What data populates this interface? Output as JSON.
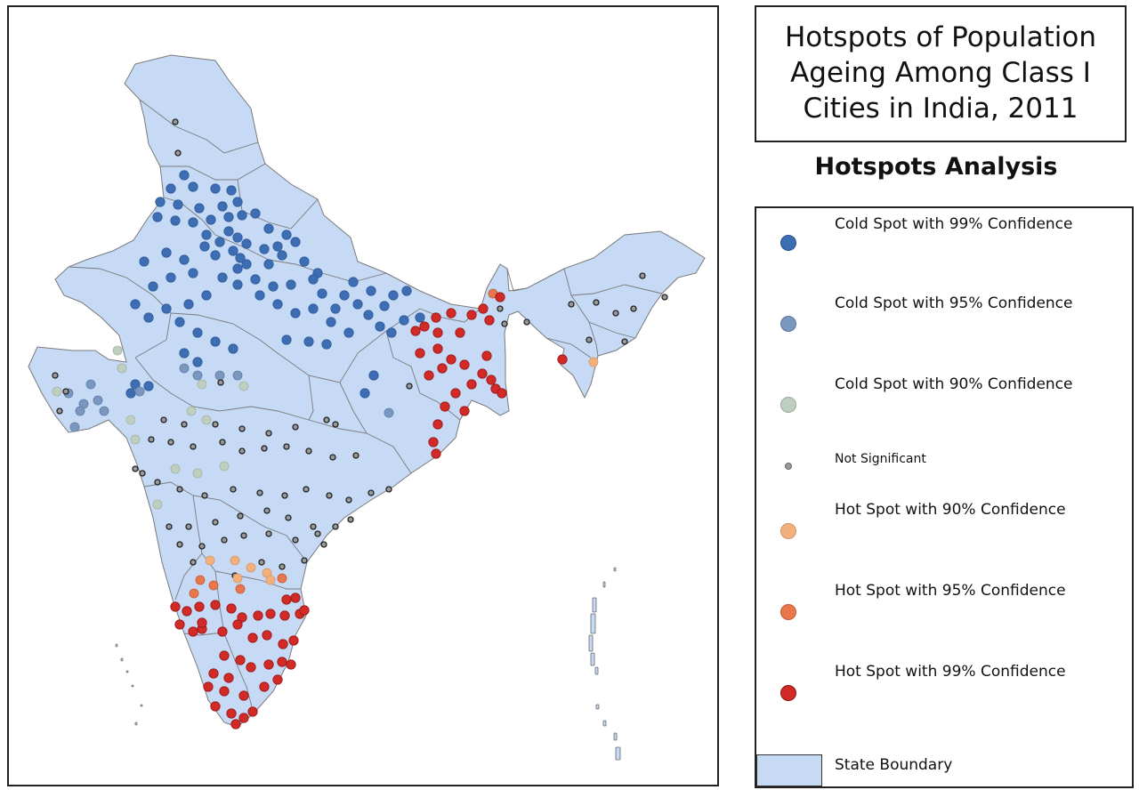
{
  "title": "Hotspots of Population Ageing  Among Class I Cities in India, 2011",
  "subtitle": "Hotspots Analysis",
  "legend": [
    {
      "label": "Cold Spot with 99% Confidence",
      "class": "cold99",
      "color": "#3d6eb4"
    },
    {
      "label": "Cold Spot with 95% Confidence",
      "class": "cold95",
      "color": "#7a98bf"
    },
    {
      "label": "Cold Spot with 90% Confidence",
      "class": "cold90",
      "color": "#bfcfbf"
    },
    {
      "label": "Not Significant",
      "class": "ns",
      "color": "#999999"
    },
    {
      "label": "Hot Spot with 90% Confidence",
      "class": "hot90",
      "color": "#f2b07e"
    },
    {
      "label": "Hot Spot with 95% Confidence",
      "class": "hot95",
      "color": "#e8774e"
    },
    {
      "label": "Hot Spot with 99% Confidence",
      "class": "hot99",
      "color": "#d22a26"
    }
  ],
  "boundary_label": "State Boundary",
  "colors": {
    "state_fill": "#c6d9f5",
    "state_border": "#7a7a7a",
    "cold99": "#3d6eb4",
    "cold95": "#7a98bf",
    "cold90": "#bfcfbf",
    "ns": "#9a9a9a",
    "hot90": "#f2b07e",
    "hot95": "#e8774e",
    "hot99": "#d22a26"
  }
}
